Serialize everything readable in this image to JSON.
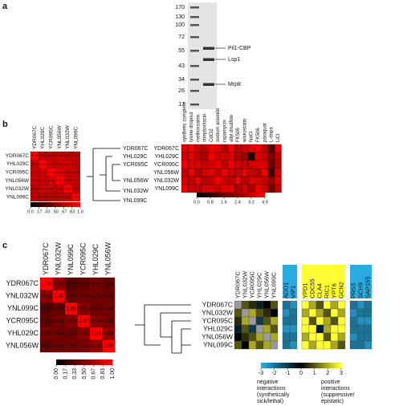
{
  "panel_a": {
    "label": "a",
    "ladder": [
      170,
      130,
      100,
      72,
      55,
      43,
      34,
      26,
      17
    ],
    "bands": [
      "Pil1-CBP",
      "Lsp1",
      "Mrp8"
    ]
  },
  "panel_b": {
    "label": "b",
    "genes": [
      "YDR067C",
      "YHL029C",
      "YCR095C",
      "YNL056W",
      "YNL032W",
      "YNL099C"
    ],
    "correlation": [
      [
        1.0,
        0.76,
        0.77,
        0.8,
        0.74,
        0.75
      ],
      [
        0.76,
        1.0,
        0.8,
        0.81,
        0.83,
        0.75
      ],
      [
        0.77,
        0.8,
        1.0,
        0.84,
        0.8,
        0.76
      ],
      [
        0.8,
        0.81,
        0.84,
        1.0,
        0.8,
        0.76
      ],
      [
        0.74,
        0.83,
        0.8,
        0.8,
        1.0,
        0.76
      ],
      [
        0.75,
        0.75,
        0.76,
        0.76,
        0.76,
        1.0
      ]
    ],
    "correlation_labels": [
      [
        "1.00",
        "0.76",
        "0.77",
        "0.80",
        "0.74",
        "0.75"
      ],
      [
        "0.76",
        "1.00",
        "0.80",
        "0.81",
        "0.83",
        "0.75"
      ],
      [
        "0.77",
        "0.80",
        "1.00",
        "0.84",
        "0.80",
        "0.76"
      ],
      [
        "0.80",
        "0.81",
        "0.84",
        "1.00",
        "0.80",
        "0.76"
      ],
      [
        "0.74",
        "0.83",
        "0.80",
        "0.80",
        "1.00",
        "0.76"
      ],
      [
        "0.75",
        "0.75",
        "0.76",
        "0.76",
        "0.76",
        "1.00"
      ]
    ],
    "scale_ticks": [
      {
        "value": 0,
        "label": "0.0"
      },
      {
        "value": 0.17,
        "label": ".17"
      },
      {
        "value": 0.33,
        "label": ".33"
      },
      {
        "value": 0.5,
        "label": ".50"
      },
      {
        "value": 0.67,
        "label": ".67"
      },
      {
        "value": 0.83,
        "label": ".83"
      },
      {
        "value": 1,
        "label": "1.0"
      }
    ],
    "tree_genes": [
      "YDR067C",
      "YHL029C",
      "YCR095C",
      "YNL056W",
      "YNL032W",
      "YNL099C"
    ],
    "conditions": [
      "synthetic complete",
      "lysine dropout",
      "methoxsalen",
      "streptovitacin",
      "CdCl2",
      "sodium arsenite",
      "rapamycin",
      "allyl disulfide",
      "FK506",
      "wiskostatin",
      "NaCl",
      "FK506",
      "paraquat",
      "L-dopa",
      "LiCl"
    ],
    "condition_values": [
      [
        3.5,
        3.8,
        3.2,
        3.0,
        3.6,
        3.4,
        2.8,
        3.9,
        3.0,
        3.2,
        3.5,
        3.7,
        2.9,
        1.2,
        3.6
      ],
      [
        3.2,
        3.6,
        3.0,
        2.6,
        3.8,
        3.1,
        3.3,
        3.5,
        2.7,
        2.4,
        0.4,
        3.4,
        3.1,
        2.0,
        3.0
      ],
      [
        3.7,
        3.4,
        3.5,
        3.1,
        3.2,
        3.6,
        2.9,
        3.8,
        3.3,
        3.0,
        3.2,
        3.5,
        3.4,
        1.6,
        2.8
      ],
      [
        3.0,
        3.7,
        2.8,
        3.3,
        3.5,
        2.9,
        3.6,
        3.2,
        3.1,
        3.6,
        3.0,
        2.7,
        3.8,
        1.0,
        3.3
      ],
      [
        3.4,
        3.1,
        3.6,
        2.8,
        3.0,
        3.7,
        3.1,
        3.0,
        3.6,
        2.9,
        3.4,
        3.2,
        3.0,
        2.4,
        3.5
      ],
      [
        3.6,
        3.3,
        3.1,
        3.4,
        3.3,
        3.0,
        3.5,
        3.6,
        2.8,
        3.3,
        2.6,
        3.6,
        3.2,
        1.8,
        3.1
      ]
    ],
    "condition_ticks": [
      {
        "value": 0,
        "label": "0.0"
      },
      0.8,
      1.6,
      2.4,
      3.2,
      {
        "value": 4,
        "label": "4.0"
      }
    ]
  },
  "panel_c": {
    "label": "c",
    "genes": [
      "YDR067C",
      "YNL032W",
      "YNL099C",
      "YCR095C",
      "YHL029C",
      "YNL056W"
    ],
    "correlation": [
      [
        1.0,
        0.54,
        0.33,
        0.38,
        0.46,
        0.39
      ],
      [
        0.54,
        1.0,
        0.4,
        0.45,
        0.45,
        0.43
      ],
      [
        0.33,
        0.4,
        1.0,
        0.53,
        0.43,
        0.46
      ],
      [
        0.38,
        0.45,
        0.53,
        1.0,
        0.54,
        0.48
      ],
      [
        0.46,
        0.45,
        0.43,
        0.54,
        1.0,
        0.58
      ],
      [
        0.39,
        0.43,
        0.46,
        0.48,
        0.58,
        1.0
      ]
    ],
    "correlation_labels": [
      [
        "1.00",
        "0.54",
        "0.33",
        "0.38",
        "0.46",
        "0.39"
      ],
      [
        "0.54",
        "1.00",
        "0.40",
        "0.45",
        "0.45",
        "0.43"
      ],
      [
        "0.33",
        "0.40",
        "1.00",
        "0.53",
        "0.43",
        "0.46"
      ],
      [
        "0.38",
        "0.45",
        "0.53",
        "1.00",
        "0.54",
        "0.48"
      ],
      [
        "0.46",
        "0.45",
        "0.43",
        "0.54",
        "1.00",
        "0.58"
      ],
      [
        "0.39",
        "0.43",
        "0.46",
        "0.48",
        "0.58",
        "1.00"
      ]
    ],
    "scale_ticks": [
      {
        "value": 0,
        "label": "0.00"
      },
      0.17,
      0.33,
      {
        "value": 0.5,
        "label": "0.50"
      },
      0.67,
      0.83,
      {
        "value": 1,
        "label": "1.00"
      }
    ],
    "interaction_rows": [
      "YDR067C",
      "YNL032W",
      "YCR095C",
      "YHL029C",
      "YNL056W",
      "YNL099C"
    ],
    "column_groups": [
      [
        "YDR067C",
        "YNL032W",
        "YCR095C",
        "YHL029C",
        "YNL056W",
        "YNL099C"
      ],
      [
        "ADO1",
        "VIP1"
      ],
      [
        "YPD1",
        "CDC55",
        "CLA4",
        "RIC1",
        "YPT6",
        "GCN2"
      ],
      [
        "PRS5",
        "SCH9",
        "SAP155"
      ]
    ],
    "interactions": [
      [
        null,
        1,
        0.5,
        -0.5,
        0,
        1,
        -2,
        -2.5,
        3,
        2,
        1,
        3,
        2,
        3,
        -2,
        -2.5,
        -2
      ],
      [
        1,
        null,
        2,
        1,
        0.5,
        0,
        -2.5,
        -2,
        2,
        3,
        2,
        1,
        3,
        2,
        -2.5,
        -2,
        -2
      ],
      [
        0.5,
        2,
        null,
        -1,
        1,
        2,
        -2,
        -2,
        3,
        1,
        3,
        2,
        1,
        3,
        -2,
        -2.5,
        -2.5
      ],
      [
        -0.5,
        1,
        -1,
        null,
        2,
        1,
        -2.5,
        -2.5,
        3,
        3,
        -0.5,
        2,
        3,
        3,
        -2,
        -2,
        -2
      ],
      [
        0,
        0.5,
        1,
        2,
        null,
        2,
        -2,
        -2,
        2,
        3,
        3,
        1,
        3,
        2,
        -2.5,
        -2,
        -2
      ],
      [
        1,
        0,
        2,
        1,
        2,
        null,
        -2,
        -2.5,
        3,
        2,
        3,
        3,
        2,
        1,
        -2,
        -2,
        -2.5
      ]
    ],
    "interaction_ticks": [
      -3,
      -2,
      -1,
      0,
      1,
      2,
      3
    ],
    "negative_text": [
      "negative",
      "interactions",
      "(synthetically",
      "sick/lethal)"
    ],
    "positive_text": [
      "positive",
      "interactions",
      "(suppressive/",
      "epistatic)"
    ]
  }
}
